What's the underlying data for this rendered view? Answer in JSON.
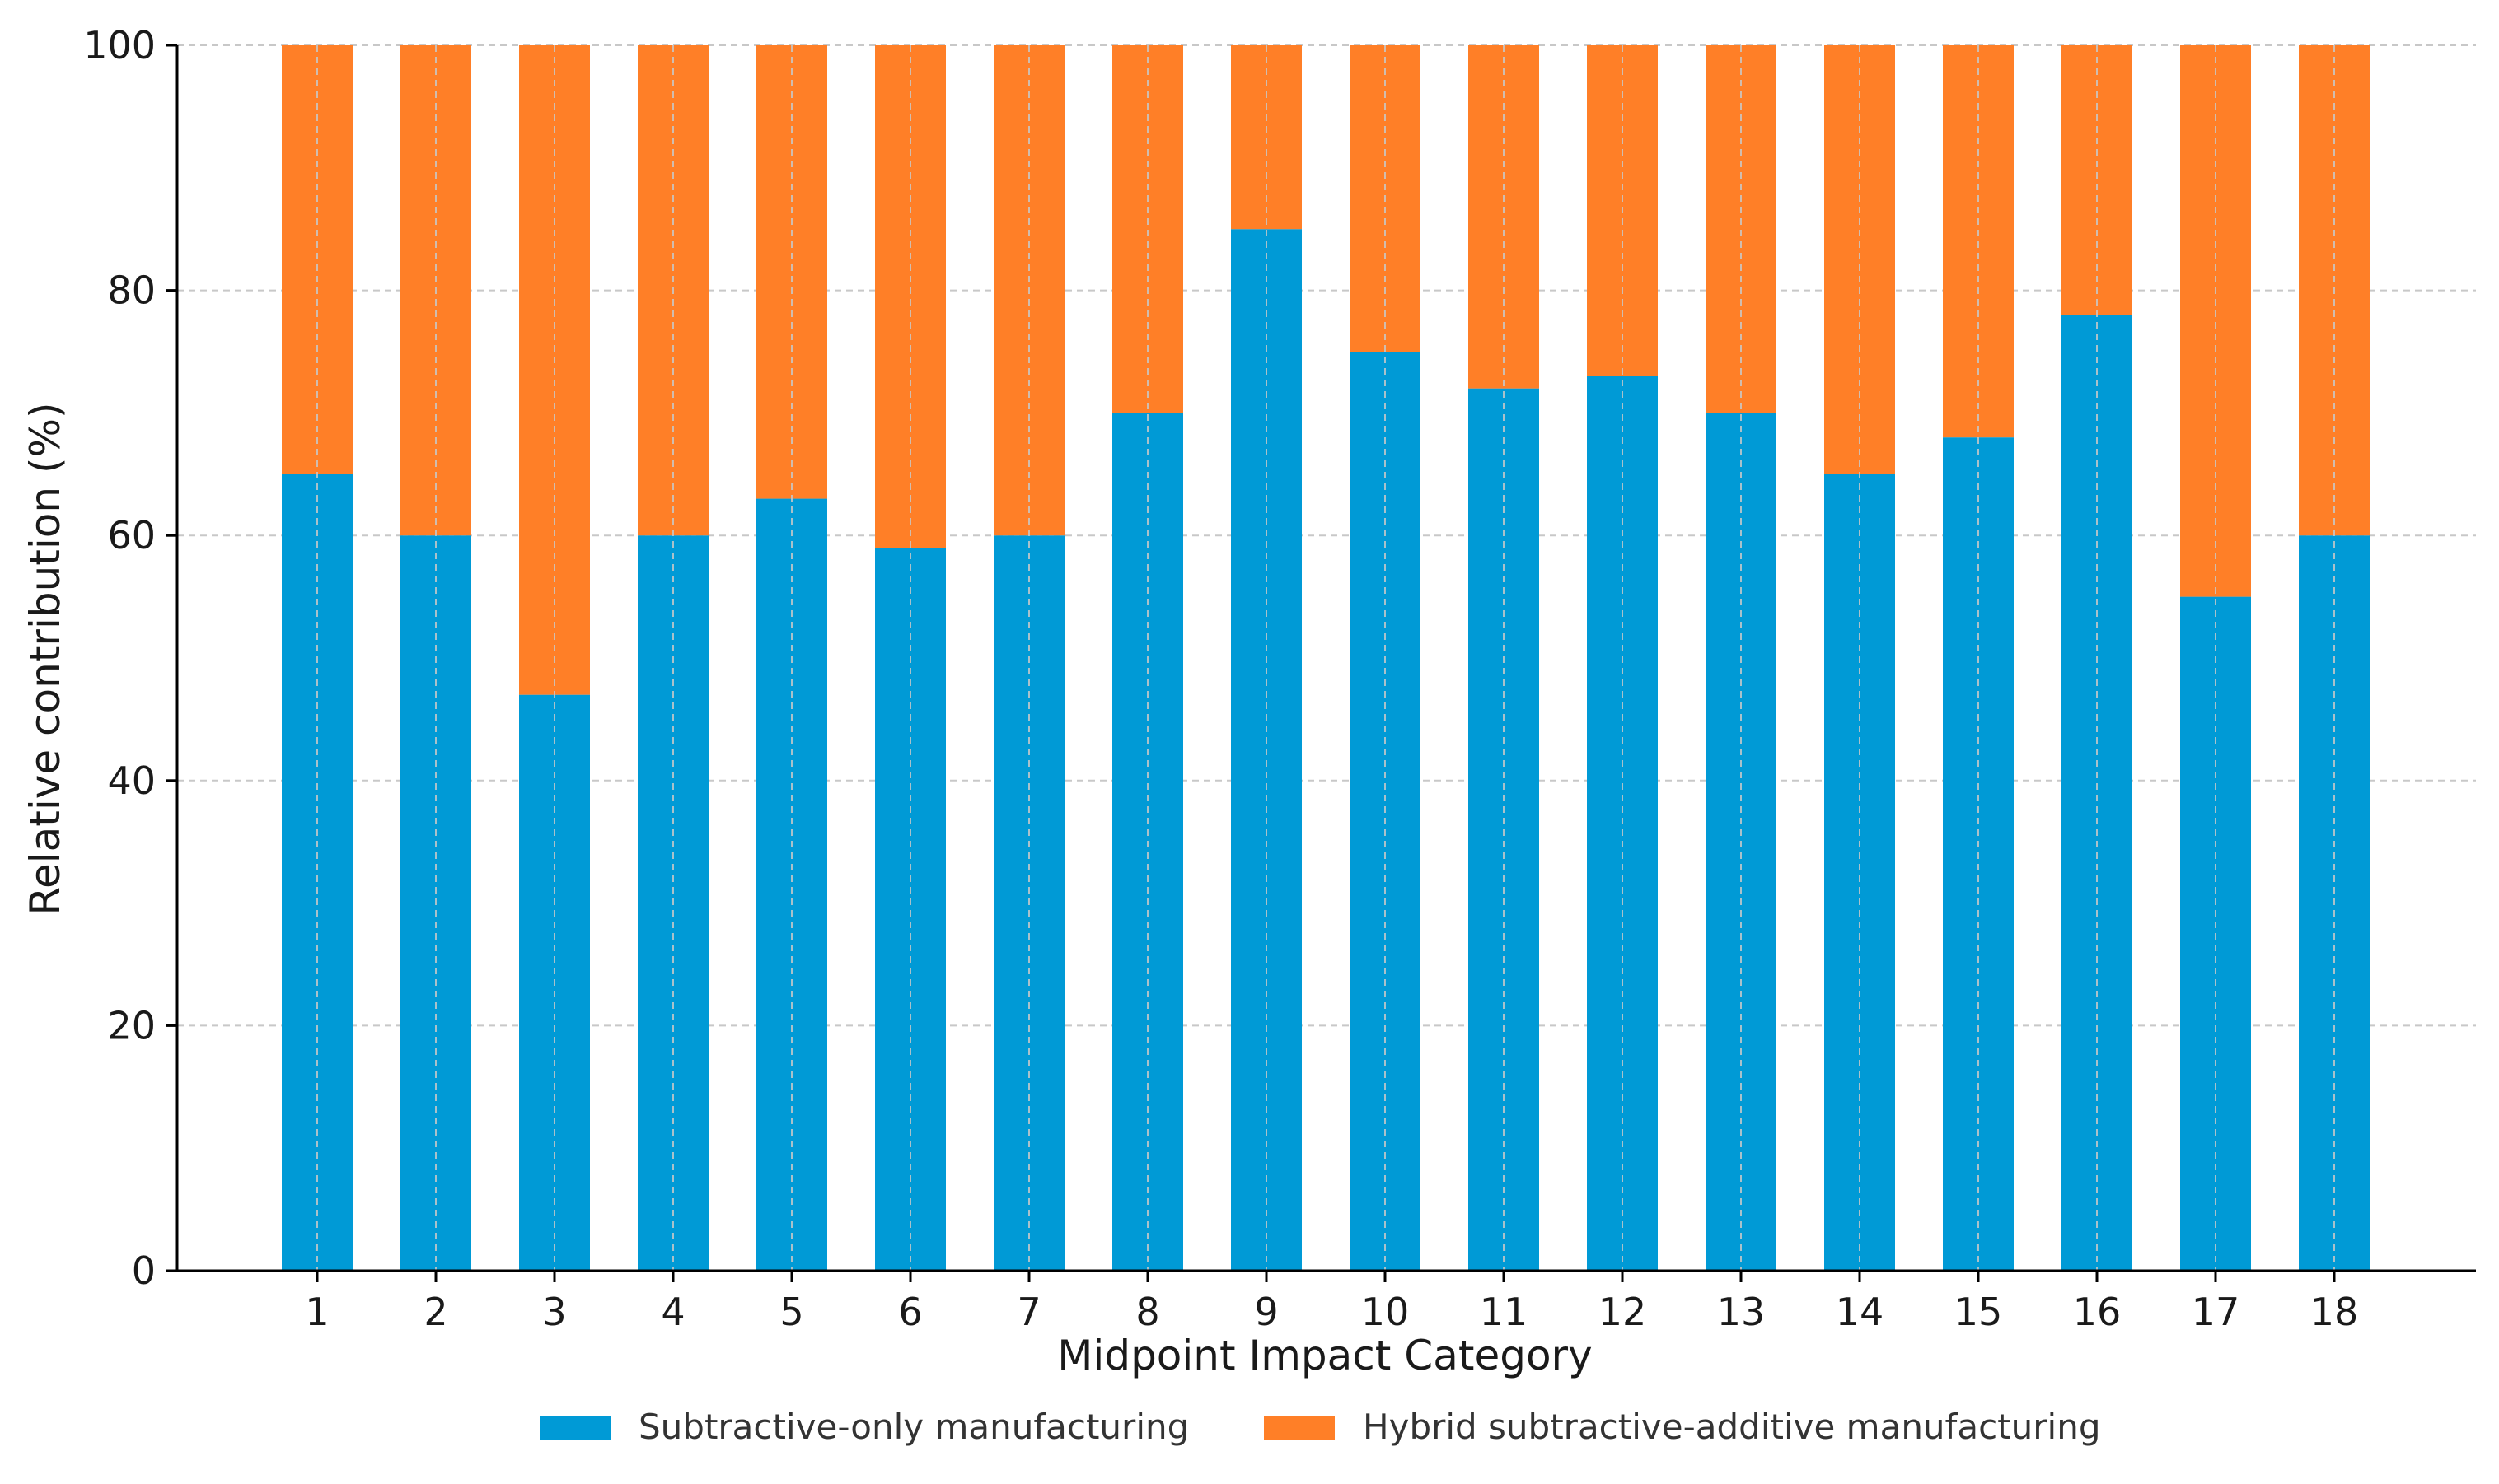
{
  "chart_data": {
    "type": "bar",
    "stacked": true,
    "title": "",
    "xlabel": "Midpoint Impact Category",
    "ylabel": "Relative contribution (%)",
    "ylim": [
      0,
      100
    ],
    "yticks": [
      0,
      20,
      40,
      60,
      80,
      100
    ],
    "grid": true,
    "legend_position": "bottom-center",
    "categories": [
      "1",
      "2",
      "3",
      "4",
      "5",
      "6",
      "7",
      "8",
      "9",
      "10",
      "11",
      "12",
      "13",
      "14",
      "15",
      "16",
      "17",
      "18"
    ],
    "series": [
      {
        "name": "Subtractive-only manufacturing",
        "color": "#009ad6",
        "values": [
          65,
          60,
          47,
          60,
          63,
          59,
          60,
          70,
          85,
          75,
          72,
          73,
          70,
          65,
          68,
          78,
          55,
          60
        ]
      },
      {
        "name": "Hybrid subtractive-additive manufacturing",
        "color": "#ff7f27",
        "values": [
          35,
          40,
          53,
          40,
          37,
          41,
          40,
          30,
          15,
          25,
          28,
          27,
          30,
          35,
          32,
          22,
          45,
          40
        ]
      }
    ]
  }
}
